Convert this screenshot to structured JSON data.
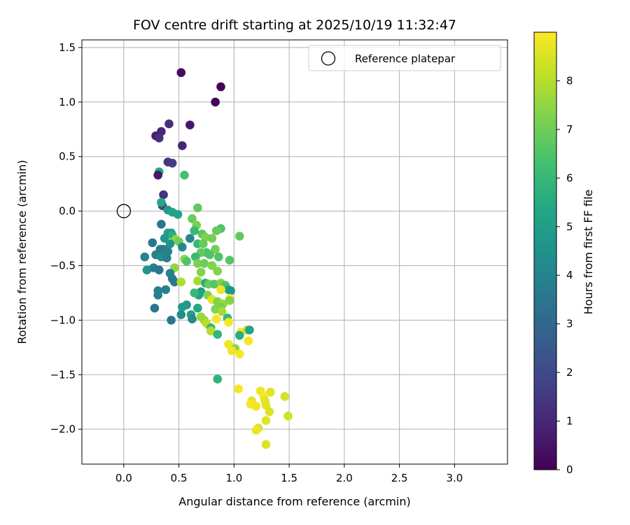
{
  "chart_data": {
    "type": "scatter",
    "title": "FOV centre drift starting at 2025/10/19 11:32:47",
    "xlabel": "Angular distance from reference (arcmin)",
    "ylabel": "Rotation from reference (arcmin)",
    "xlim": [
      -0.38,
      3.48
    ],
    "ylim": [
      -2.32,
      1.57
    ],
    "xticks": [
      "0.0",
      "0.5",
      "1.0",
      "1.5",
      "2.0",
      "2.5",
      "3.0"
    ],
    "xtick_values": [
      0,
      0.5,
      1.0,
      1.5,
      2.0,
      2.5,
      3.0
    ],
    "yticks": [
      "1.5",
      "1.0",
      "0.5",
      "0.0",
      "−0.5",
      "−1.0",
      "−1.5",
      "−2.0"
    ],
    "ytick_values": [
      1.5,
      1.0,
      0.5,
      0,
      -0.5,
      -1.0,
      -1.5,
      -2.0
    ],
    "grid": true,
    "colormap": "viridis",
    "colorbar": {
      "label": "Hours from first FF file",
      "range": [
        0,
        9
      ],
      "ticks": [
        "0",
        "1",
        "2",
        "3",
        "4",
        "5",
        "6",
        "7",
        "8"
      ],
      "tick_values": [
        0,
        1,
        2,
        3,
        4,
        5,
        6,
        7,
        8
      ]
    },
    "legend": {
      "label": "Reference platepar",
      "location": "top-right"
    },
    "reference_point": {
      "x": 0.0,
      "y": 0.0
    },
    "points": [
      {
        "x": 0.52,
        "y": 1.27,
        "h": 0.3
      },
      {
        "x": 0.88,
        "y": 1.14,
        "h": 0.1
      },
      {
        "x": 0.83,
        "y": 1.0,
        "h": 0.1
      },
      {
        "x": 0.41,
        "y": 0.8,
        "h": 1.2
      },
      {
        "x": 0.6,
        "y": 0.79,
        "h": 0.6
      },
      {
        "x": 0.34,
        "y": 0.73,
        "h": 1.0
      },
      {
        "x": 0.29,
        "y": 0.69,
        "h": 0.8
      },
      {
        "x": 0.32,
        "y": 0.67,
        "h": 1.2
      },
      {
        "x": 0.53,
        "y": 0.6,
        "h": 0.9
      },
      {
        "x": 0.4,
        "y": 0.45,
        "h": 1.5
      },
      {
        "x": 0.44,
        "y": 0.44,
        "h": 1.6
      },
      {
        "x": 0.55,
        "y": 0.33,
        "h": 6.3
      },
      {
        "x": 0.32,
        "y": 0.36,
        "h": 5.4
      },
      {
        "x": 0.31,
        "y": 0.33,
        "h": 0.6
      },
      {
        "x": 0.36,
        "y": 0.15,
        "h": 1.4
      },
      {
        "x": 0.35,
        "y": 0.05,
        "h": 1.8
      },
      {
        "x": 0.34,
        "y": 0.08,
        "h": 5.4
      },
      {
        "x": 0.4,
        "y": 0.01,
        "h": 4.9
      },
      {
        "x": 0.44,
        "y": -0.01,
        "h": 5.3
      },
      {
        "x": 0.49,
        "y": -0.03,
        "h": 5.2
      },
      {
        "x": 0.67,
        "y": 0.03,
        "h": 6.8
      },
      {
        "x": 0.34,
        "y": -0.12,
        "h": 3.5
      },
      {
        "x": 0.62,
        "y": -0.07,
        "h": 6.9
      },
      {
        "x": 0.66,
        "y": -0.13,
        "h": 7.2
      },
      {
        "x": 0.88,
        "y": -0.16,
        "h": 6.5
      },
      {
        "x": 0.84,
        "y": -0.18,
        "h": 6.9
      },
      {
        "x": 0.4,
        "y": -0.2,
        "h": 5.2
      },
      {
        "x": 0.43,
        "y": -0.2,
        "h": 4.9
      },
      {
        "x": 0.37,
        "y": -0.25,
        "h": 4.7
      },
      {
        "x": 0.44,
        "y": -0.22,
        "h": 5.6
      },
      {
        "x": 1.05,
        "y": -0.23,
        "h": 6.8
      },
      {
        "x": 0.71,
        "y": -0.21,
        "h": 6.7
      },
      {
        "x": 0.74,
        "y": -0.24,
        "h": 7.2
      },
      {
        "x": 0.64,
        "y": -0.18,
        "h": 6.0
      },
      {
        "x": 0.47,
        "y": -0.26,
        "h": 7.5
      },
      {
        "x": 0.5,
        "y": -0.28,
        "h": 7.0
      },
      {
        "x": 0.6,
        "y": -0.25,
        "h": 4.1
      },
      {
        "x": 0.26,
        "y": -0.29,
        "h": 3.6
      },
      {
        "x": 0.42,
        "y": -0.3,
        "h": 4.6
      },
      {
        "x": 0.53,
        "y": -0.33,
        "h": 4.2
      },
      {
        "x": 0.33,
        "y": -0.35,
        "h": 3.8
      },
      {
        "x": 0.36,
        "y": -0.35,
        "h": 3.8
      },
      {
        "x": 0.4,
        "y": -0.37,
        "h": 4.0
      },
      {
        "x": 0.67,
        "y": -0.3,
        "h": 6.0
      },
      {
        "x": 0.72,
        "y": -0.3,
        "h": 6.9
      },
      {
        "x": 0.8,
        "y": -0.25,
        "h": 7.1
      },
      {
        "x": 0.83,
        "y": -0.35,
        "h": 7.1
      },
      {
        "x": 0.75,
        "y": -0.38,
        "h": 6.3
      },
      {
        "x": 0.78,
        "y": -0.4,
        "h": 6.5
      },
      {
        "x": 0.7,
        "y": -0.38,
        "h": 6.8
      },
      {
        "x": 0.65,
        "y": -0.42,
        "h": 6.1
      },
      {
        "x": 0.19,
        "y": -0.42,
        "h": 4.0
      },
      {
        "x": 0.29,
        "y": -0.4,
        "h": 3.9
      },
      {
        "x": 0.34,
        "y": -0.42,
        "h": 4.4
      },
      {
        "x": 0.39,
        "y": -0.43,
        "h": 3.9
      },
      {
        "x": 0.55,
        "y": -0.44,
        "h": 7.5
      },
      {
        "x": 0.57,
        "y": -0.46,
        "h": 6.5
      },
      {
        "x": 0.86,
        "y": -0.42,
        "h": 6.5
      },
      {
        "x": 0.96,
        "y": -0.45,
        "h": 6.6
      },
      {
        "x": 0.67,
        "y": -0.48,
        "h": 7.2
      },
      {
        "x": 0.73,
        "y": -0.48,
        "h": 7.0
      },
      {
        "x": 0.8,
        "y": -0.5,
        "h": 7.3
      },
      {
        "x": 0.46,
        "y": -0.52,
        "h": 7.5
      },
      {
        "x": 0.21,
        "y": -0.54,
        "h": 4.6
      },
      {
        "x": 0.27,
        "y": -0.52,
        "h": 3.8
      },
      {
        "x": 0.32,
        "y": -0.54,
        "h": 3.5
      },
      {
        "x": 0.42,
        "y": -0.57,
        "h": 4.0
      },
      {
        "x": 0.7,
        "y": -0.56,
        "h": 7.3
      },
      {
        "x": 0.85,
        "y": -0.55,
        "h": 7.3
      },
      {
        "x": 0.44,
        "y": -0.62,
        "h": 3.7
      },
      {
        "x": 0.46,
        "y": -0.65,
        "h": 3.6
      },
      {
        "x": 0.52,
        "y": -0.65,
        "h": 7.9
      },
      {
        "x": 0.67,
        "y": -0.64,
        "h": 7.8
      },
      {
        "x": 0.74,
        "y": -0.66,
        "h": 5.5
      },
      {
        "x": 0.77,
        "y": -0.67,
        "h": 6.9
      },
      {
        "x": 0.82,
        "y": -0.67,
        "h": 6.6
      },
      {
        "x": 0.88,
        "y": -0.66,
        "h": 7.3
      },
      {
        "x": 0.92,
        "y": -0.68,
        "h": 6.5
      },
      {
        "x": 0.95,
        "y": -0.72,
        "h": 5.4
      },
      {
        "x": 0.97,
        "y": -0.73,
        "h": 4.7
      },
      {
        "x": 0.31,
        "y": -0.73,
        "h": 3.8
      },
      {
        "x": 0.31,
        "y": -0.77,
        "h": 3.9
      },
      {
        "x": 0.38,
        "y": -0.72,
        "h": 3.9
      },
      {
        "x": 0.7,
        "y": -0.74,
        "h": 4.8
      },
      {
        "x": 0.76,
        "y": -0.77,
        "h": 7.3
      },
      {
        "x": 0.88,
        "y": -0.72,
        "h": 8.8
      },
      {
        "x": 0.68,
        "y": -0.77,
        "h": 5.2
      },
      {
        "x": 0.64,
        "y": -0.75,
        "h": 6.0
      },
      {
        "x": 0.8,
        "y": -0.81,
        "h": 8.6
      },
      {
        "x": 0.85,
        "y": -0.83,
        "h": 7.3
      },
      {
        "x": 0.9,
        "y": -0.85,
        "h": 7.6
      },
      {
        "x": 0.96,
        "y": -0.8,
        "h": 9.0
      },
      {
        "x": 0.96,
        "y": -0.82,
        "h": 7.3
      },
      {
        "x": 0.57,
        "y": -0.86,
        "h": 4.7
      },
      {
        "x": 0.53,
        "y": -0.88,
        "h": 4.9
      },
      {
        "x": 0.28,
        "y": -0.89,
        "h": 3.5
      },
      {
        "x": 0.67,
        "y": -0.89,
        "h": 5.4
      },
      {
        "x": 0.88,
        "y": -0.88,
        "h": 7.1
      },
      {
        "x": 0.83,
        "y": -0.9,
        "h": 7.3
      },
      {
        "x": 0.89,
        "y": -0.92,
        "h": 7.8
      },
      {
        "x": 0.52,
        "y": -0.95,
        "h": 4.4
      },
      {
        "x": 0.61,
        "y": -0.95,
        "h": 5.1
      },
      {
        "x": 0.62,
        "y": -0.99,
        "h": 4.3
      },
      {
        "x": 0.7,
        "y": -0.97,
        "h": 7.6
      },
      {
        "x": 0.73,
        "y": -1.0,
        "h": 7.6
      },
      {
        "x": 0.75,
        "y": -1.03,
        "h": 8.1
      },
      {
        "x": 0.84,
        "y": -0.99,
        "h": 8.9
      },
      {
        "x": 0.94,
        "y": -0.98,
        "h": 6.0
      },
      {
        "x": 0.95,
        "y": -1.02,
        "h": 8.9
      },
      {
        "x": 0.43,
        "y": -1.0,
        "h": 3.5
      },
      {
        "x": 0.79,
        "y": -1.07,
        "h": 6.0
      },
      {
        "x": 0.79,
        "y": -1.1,
        "h": 8.0
      },
      {
        "x": 0.85,
        "y": -1.13,
        "h": 5.9
      },
      {
        "x": 1.06,
        "y": -1.11,
        "h": 8.9
      },
      {
        "x": 1.05,
        "y": -1.14,
        "h": 5.6
      },
      {
        "x": 1.12,
        "y": -1.09,
        "h": 8.1
      },
      {
        "x": 1.14,
        "y": -1.09,
        "h": 5.3
      },
      {
        "x": 1.13,
        "y": -1.19,
        "h": 8.9
      },
      {
        "x": 0.95,
        "y": -1.22,
        "h": 8.8
      },
      {
        "x": 1.01,
        "y": -1.26,
        "h": 7.4
      },
      {
        "x": 0.98,
        "y": -1.28,
        "h": 8.8
      },
      {
        "x": 1.05,
        "y": -1.31,
        "h": 8.9
      },
      {
        "x": 0.85,
        "y": -1.54,
        "h": 5.8
      },
      {
        "x": 1.04,
        "y": -1.63,
        "h": 8.9
      },
      {
        "x": 1.24,
        "y": -1.65,
        "h": 8.8
      },
      {
        "x": 1.33,
        "y": -1.66,
        "h": 8.6
      },
      {
        "x": 1.27,
        "y": -1.7,
        "h": 8.9
      },
      {
        "x": 1.46,
        "y": -1.7,
        "h": 8.4
      },
      {
        "x": 1.16,
        "y": -1.74,
        "h": 8.6
      },
      {
        "x": 1.15,
        "y": -1.77,
        "h": 8.9
      },
      {
        "x": 1.28,
        "y": -1.74,
        "h": 8.6
      },
      {
        "x": 1.2,
        "y": -1.79,
        "h": 8.8
      },
      {
        "x": 1.29,
        "y": -1.78,
        "h": 8.6
      },
      {
        "x": 1.32,
        "y": -1.84,
        "h": 8.5
      },
      {
        "x": 1.49,
        "y": -1.88,
        "h": 8.4
      },
      {
        "x": 1.29,
        "y": -1.92,
        "h": 8.6
      },
      {
        "x": 1.22,
        "y": -1.99,
        "h": 8.5
      },
      {
        "x": 1.2,
        "y": -2.01,
        "h": 8.8
      },
      {
        "x": 1.29,
        "y": -2.14,
        "h": 8.5
      }
    ]
  }
}
